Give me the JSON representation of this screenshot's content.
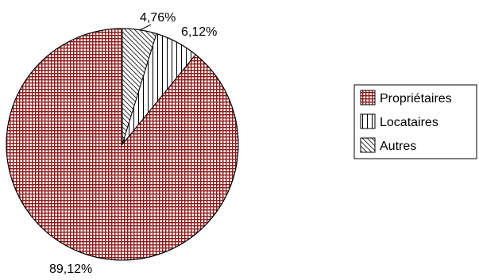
{
  "chart_data": {
    "type": "pie",
    "title": "",
    "slices": [
      {
        "label": "Propriétaires",
        "value": 89.12,
        "value_label": "89,12%",
        "pattern": "grid",
        "color": "#8b1a1a"
      },
      {
        "label": "Locataires",
        "value": 6.12,
        "value_label": "6,12%",
        "pattern": "vertical",
        "color": "#000000"
      },
      {
        "label": "Autres",
        "value": 4.76,
        "value_label": "4,76%",
        "pattern": "diagonal",
        "color": "#000000"
      }
    ],
    "legend_position": "right"
  }
}
